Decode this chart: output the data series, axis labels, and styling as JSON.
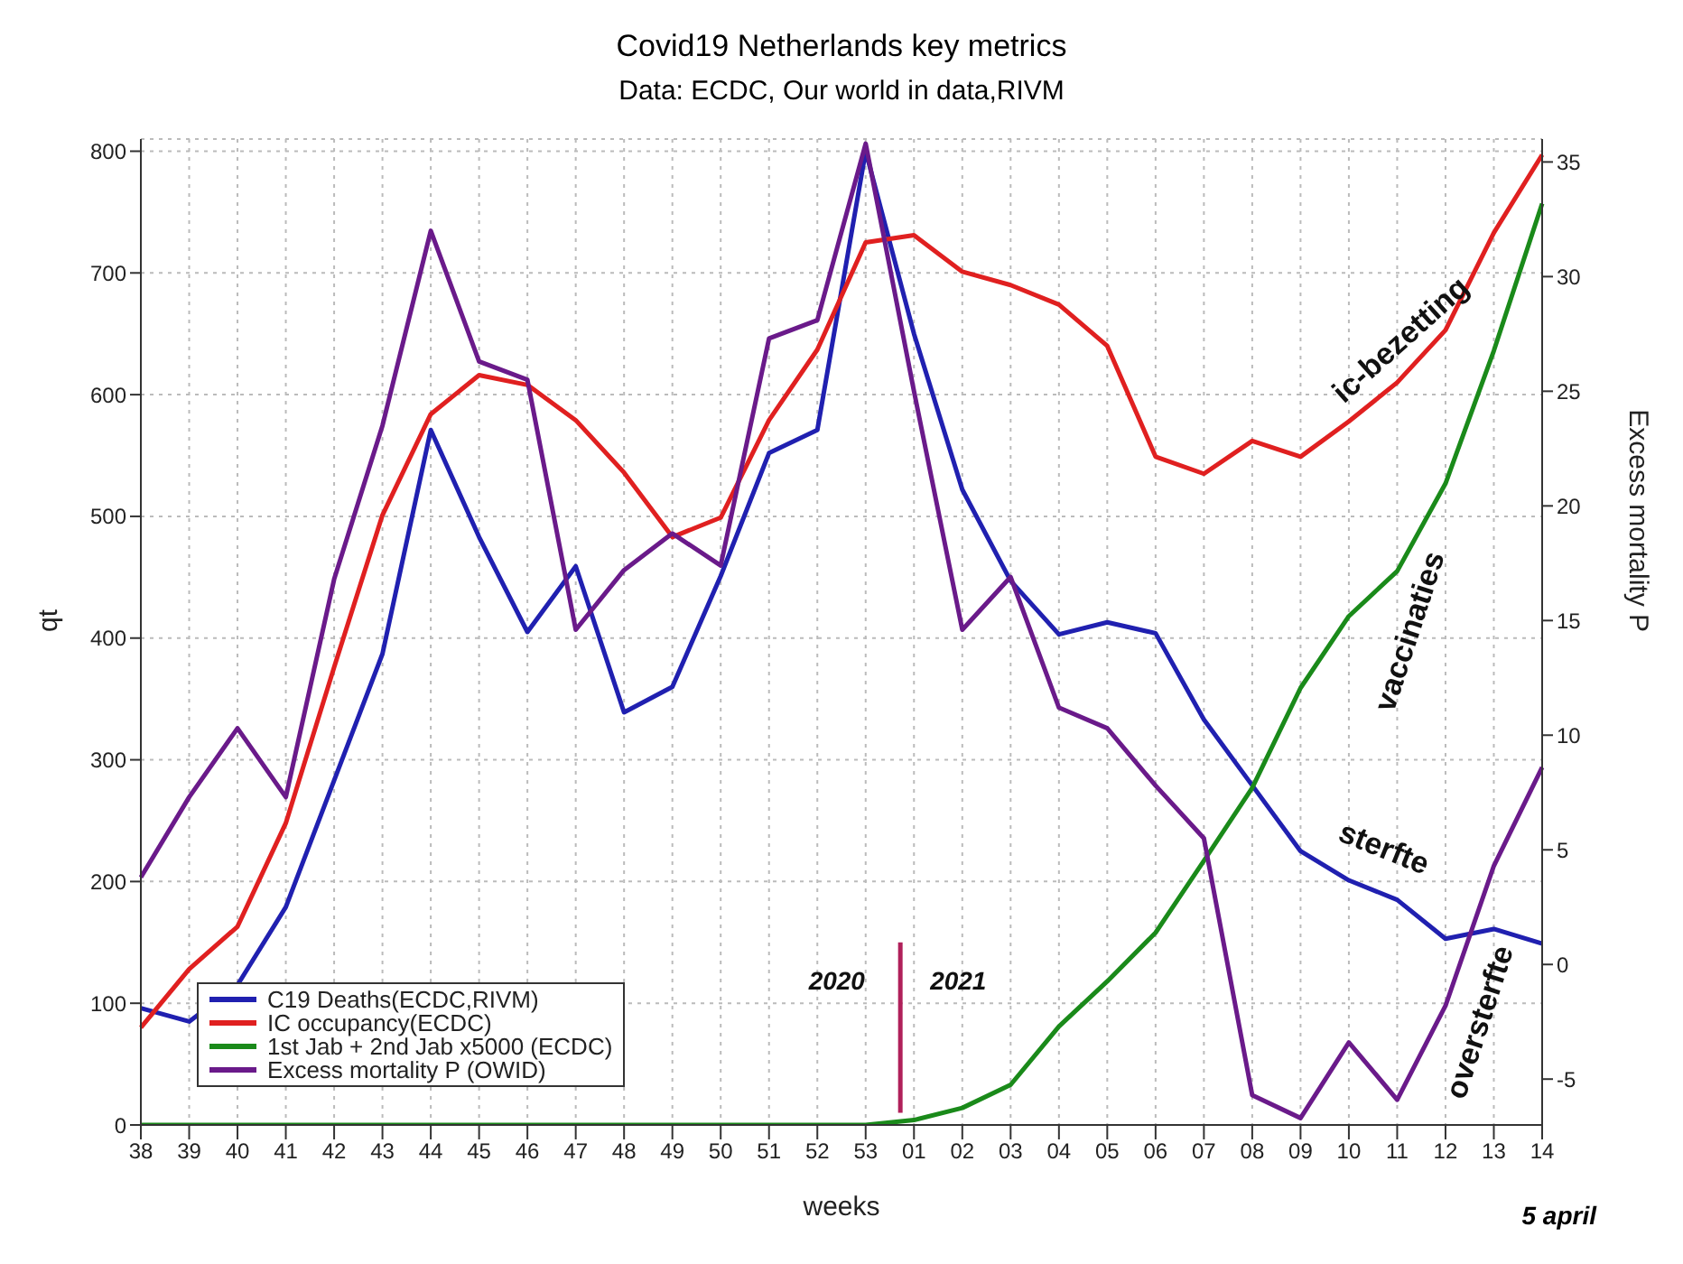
{
  "chart_data": {
    "type": "line",
    "title": "Covid19 Netherlands key metrics",
    "subtitle": "Data: ECDC, Our world in data,RIVM",
    "xlabel": "weeks",
    "ylabel": "qt",
    "y2label": "Excess mortality P",
    "categories": [
      "38",
      "39",
      "40",
      "41",
      "42",
      "43",
      "44",
      "45",
      "46",
      "47",
      "48",
      "49",
      "50",
      "51",
      "52",
      "53",
      "01",
      "02",
      "03",
      "04",
      "05",
      "06",
      "07",
      "08",
      "09",
      "10",
      "11",
      "12",
      "13",
      "14"
    ],
    "series": [
      {
        "name": "C19 Deaths(ECDC,RIVM)",
        "color": "#2020b0",
        "values": [
          96,
          85,
          115,
          179,
          283,
          387,
          571,
          483,
          405,
          459,
          339,
          360,
          451,
          552,
          571,
          800,
          650,
          522,
          447,
          403,
          413,
          404,
          333,
          279,
          225,
          201,
          185,
          153,
          161,
          149
        ]
      },
      {
        "name": "IC occupancy(ECDC)",
        "color": "#e02020",
        "values": [
          80,
          128,
          163,
          248,
          376,
          501,
          584,
          616,
          608,
          579,
          536,
          483,
          499,
          579,
          637,
          725,
          731,
          701,
          690,
          674,
          640,
          549,
          535,
          562,
          549,
          578,
          610,
          653,
          733,
          797
        ]
      },
      {
        "name": "1st Jab + 2nd Jab x5000 (ECDC)",
        "color": "#1a8a1a",
        "values": [
          0,
          0,
          0,
          0,
          0,
          0,
          0,
          0,
          0,
          0,
          0,
          0,
          0,
          0,
          0,
          0,
          4,
          14,
          33,
          81,
          118,
          158,
          217,
          277,
          359,
          418,
          455,
          527,
          636,
          757
        ]
      },
      {
        "name": "Excess mortality P (OWID)",
        "color": "#6a1a8a",
        "axis": "y2",
        "values": [
          3.8,
          7.3,
          10.3,
          7.3,
          16.8,
          23.5,
          32,
          26.3,
          25.5,
          14.6,
          17.2,
          18.8,
          17.4,
          27.3,
          28.1,
          35.8,
          25,
          14.6,
          16.9,
          11.2,
          10.3,
          7.8,
          5.5,
          -5.7,
          -6.7,
          -3.4,
          -5.9,
          -1.8,
          4.3,
          8.6
        ]
      }
    ],
    "ylim": [
      0,
      810
    ],
    "yticks": [
      0,
      100,
      200,
      300,
      400,
      500,
      600,
      700,
      800
    ],
    "y2lim": [
      -7,
      36
    ],
    "y2ticks": [
      -5,
      0,
      5,
      10,
      15,
      20,
      25,
      30,
      35
    ],
    "grid": true,
    "legend": "bottom left",
    "annotations": [
      "ic-bezetting",
      "vaccinaties",
      "sterfte",
      "oversterfte",
      "2020",
      "2021",
      "5 april"
    ]
  }
}
